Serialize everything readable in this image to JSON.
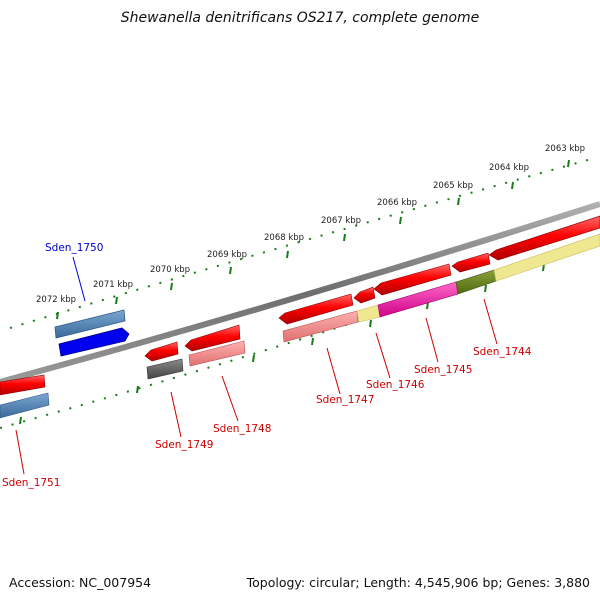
{
  "title": "Shewanella denitrificans OS217, complete genome",
  "footer": {
    "accession": "Accession: NC_007954",
    "summary": "Topology: circular; Length: 4,545,906 bp; Genes: 3,880"
  },
  "colors": {
    "backbone": "#808080",
    "tick_green": "#1a7a1a",
    "label_red": "#cc0000",
    "label_blue": "#0000cc"
  },
  "scale_labels": [
    "2072 kbp",
    "2071 kbp",
    "2070 kbp",
    "2069 kbp",
    "2068 kbp",
    "2067 kbp",
    "2066 kbp",
    "2065 kbp",
    "2064 kbp",
    "2063 kbp"
  ],
  "gene_labels": {
    "sden_1750": "Sden_1750",
    "sden_1751": "Sden_1751",
    "sden_1749": "Sden_1749",
    "sden_1748": "Sden_1748",
    "sden_1747": "Sden_1747",
    "sden_1746": "Sden_1746",
    "sden_1745": "Sden_1745",
    "sden_1744": "Sden_1744"
  }
}
